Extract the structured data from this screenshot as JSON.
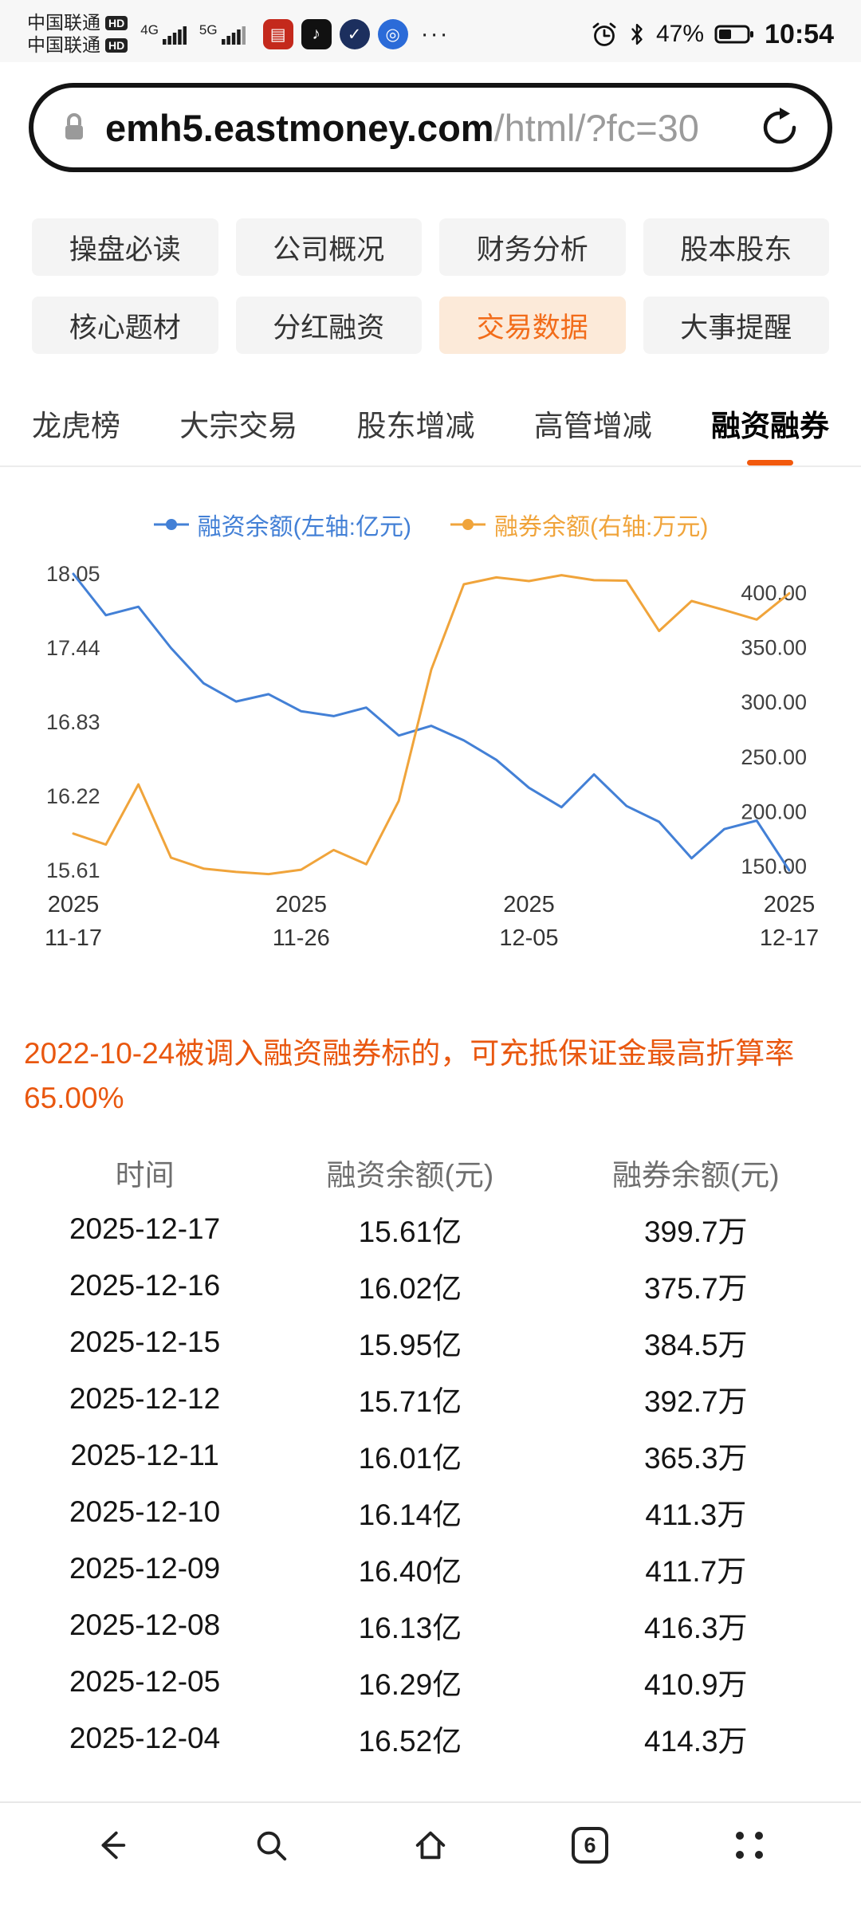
{
  "status_bar": {
    "carrier1": "中国联通",
    "carrier2": "中国联通",
    "hd": "HD",
    "net1": "4G",
    "net2": "5G",
    "more": "···",
    "battery_percent": "47%",
    "time": "10:54"
  },
  "url_bar": {
    "domain": "emh5.eastmoney.com",
    "path": "/html/?fc=30"
  },
  "nav_buttons": [
    {
      "label": "操盘必读",
      "active": false
    },
    {
      "label": "公司概况",
      "active": false
    },
    {
      "label": "财务分析",
      "active": false
    },
    {
      "label": "股本股东",
      "active": false
    },
    {
      "label": "核心题材",
      "active": false
    },
    {
      "label": "分红融资",
      "active": false
    },
    {
      "label": "交易数据",
      "active": true
    },
    {
      "label": "大事提醒",
      "active": false
    }
  ],
  "tabs": [
    {
      "label": "龙虎榜",
      "active": false
    },
    {
      "label": "大宗交易",
      "active": false
    },
    {
      "label": "股东增减",
      "active": false
    },
    {
      "label": "高管增减",
      "active": false
    },
    {
      "label": "融资融券",
      "active": true
    }
  ],
  "chart_data": {
    "type": "line",
    "x": [
      "11-17",
      "11-18",
      "11-19",
      "11-20",
      "11-21",
      "11-24",
      "11-25",
      "11-26",
      "11-27",
      "11-28",
      "12-01",
      "12-02",
      "12-03",
      "12-04",
      "12-05",
      "12-08",
      "12-09",
      "12-10",
      "12-11",
      "12-12",
      "12-15",
      "12-16",
      "12-17"
    ],
    "series": [
      {
        "name": "融资余额(左轴:亿元)",
        "axis": "left",
        "color": "#4380d6",
        "values": [
          18.05,
          17.71,
          17.78,
          17.44,
          17.15,
          17.0,
          17.06,
          16.92,
          16.88,
          16.95,
          16.72,
          16.8,
          16.68,
          16.52,
          16.29,
          16.13,
          16.4,
          16.14,
          16.01,
          15.71,
          15.95,
          16.02,
          15.61
        ]
      },
      {
        "name": "融券余额(右轴:万元)",
        "axis": "right",
        "color": "#f0a43b",
        "values": [
          180,
          170,
          225,
          158,
          148,
          145,
          143,
          147,
          165,
          152,
          210,
          330,
          408,
          414.3,
          410.9,
          416.3,
          411.7,
          411.3,
          365.3,
          392.7,
          384.5,
          375.7,
          399.7
        ]
      }
    ],
    "left_ticks": [
      "18.05",
      "17.44",
      "16.83",
      "16.22",
      "15.61"
    ],
    "right_ticks": [
      "400.00",
      "350.00",
      "300.00",
      "250.00",
      "200.00",
      "150.00"
    ],
    "x_ticks": [
      {
        "top": "2025",
        "bottom": "11-17",
        "i": 0
      },
      {
        "top": "2025",
        "bottom": "11-26",
        "i": 7
      },
      {
        "top": "2025",
        "bottom": "12-05",
        "i": 14
      },
      {
        "top": "2025",
        "bottom": "12-17",
        "i": 22
      }
    ],
    "left_axis_range": [
      15.61,
      18.05
    ],
    "right_axis_range": [
      150,
      400
    ],
    "grid": false,
    "legend_position": "top"
  },
  "notice": "2022-10-24被调入融资融券标的，可充抵保证金最高折算率65.00%",
  "table": {
    "headers": [
      "时间",
      "融资余额(元)",
      "融券余额(元)"
    ],
    "rows": [
      [
        "2025-12-17",
        "15.61亿",
        "399.7万"
      ],
      [
        "2025-12-16",
        "16.02亿",
        "375.7万"
      ],
      [
        "2025-12-15",
        "15.95亿",
        "384.5万"
      ],
      [
        "2025-12-12",
        "15.71亿",
        "392.7万"
      ],
      [
        "2025-12-11",
        "16.01亿",
        "365.3万"
      ],
      [
        "2025-12-10",
        "16.14亿",
        "411.3万"
      ],
      [
        "2025-12-09",
        "16.40亿",
        "411.7万"
      ],
      [
        "2025-12-08",
        "16.13亿",
        "416.3万"
      ],
      [
        "2025-12-05",
        "16.29亿",
        "410.9万"
      ],
      [
        "2025-12-04",
        "16.52亿",
        "414.3万"
      ]
    ]
  },
  "bottom_nav": {
    "tab_count": "6"
  },
  "icons": {
    "lock-icon": "padlock",
    "refresh-icon": "circular-arrow",
    "alarm-icon": "alarm-clock",
    "bluetooth-icon": "bluetooth-rune",
    "battery-icon": "battery-half",
    "back-icon": "arrow-left",
    "search-icon": "magnifier",
    "home-icon": "house-outline",
    "tabs-icon": "tab-counter-box",
    "menu-icon": "four-dots"
  },
  "colors": {
    "accent_orange": "#f26c1a",
    "tab_underline": "#f2590d",
    "notice_text": "#e9570f",
    "blue_series": "#4380d6",
    "orange_series": "#f0a43b"
  }
}
